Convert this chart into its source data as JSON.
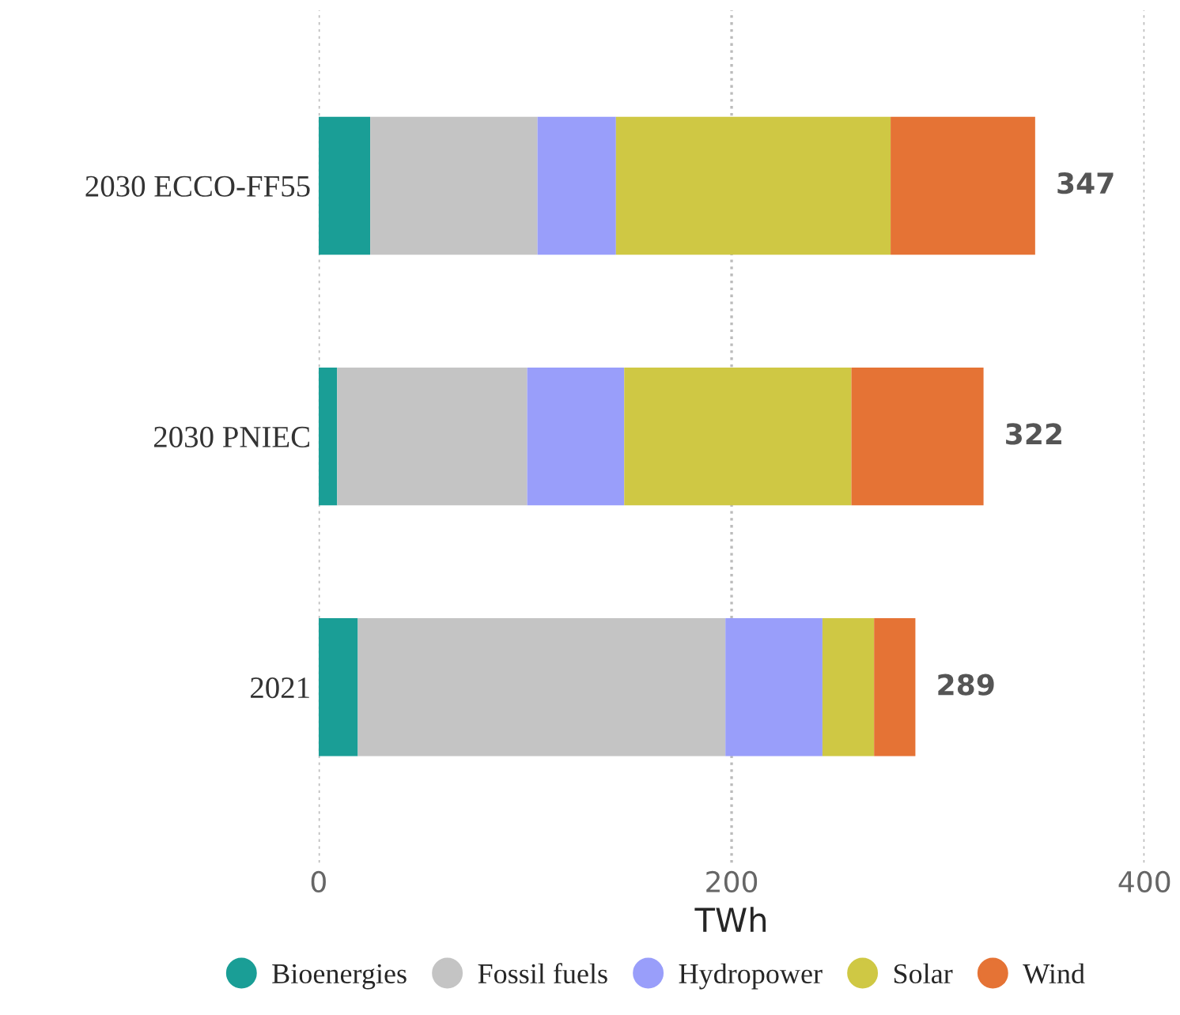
{
  "chart_data": {
    "type": "bar",
    "orientation": "horizontal",
    "stacked": true,
    "categories": [
      "2030 ECCO-FF55",
      "2030 PNIEC",
      "2021"
    ],
    "xlabel": "TWh",
    "xlim": [
      0,
      400
    ],
    "xticks": [
      0,
      200,
      400
    ],
    "grid": "x",
    "legend": "bottom",
    "series": [
      {
        "name": "Bioenergies",
        "color": "#1a9e96",
        "values": [
          25,
          9,
          19
        ]
      },
      {
        "name": "Fossil fuels",
        "color": "#c4c4c4",
        "values": [
          81,
          92,
          178
        ]
      },
      {
        "name": "Hydropower",
        "color": "#999efa",
        "values": [
          38,
          47,
          47
        ]
      },
      {
        "name": "Solar",
        "color": "#cfc844",
        "values": [
          133,
          110,
          25
        ]
      },
      {
        "name": "Wind",
        "color": "#e57335",
        "values": [
          70,
          64,
          20
        ]
      }
    ],
    "totals": [
      "347",
      "322",
      "289"
    ]
  }
}
